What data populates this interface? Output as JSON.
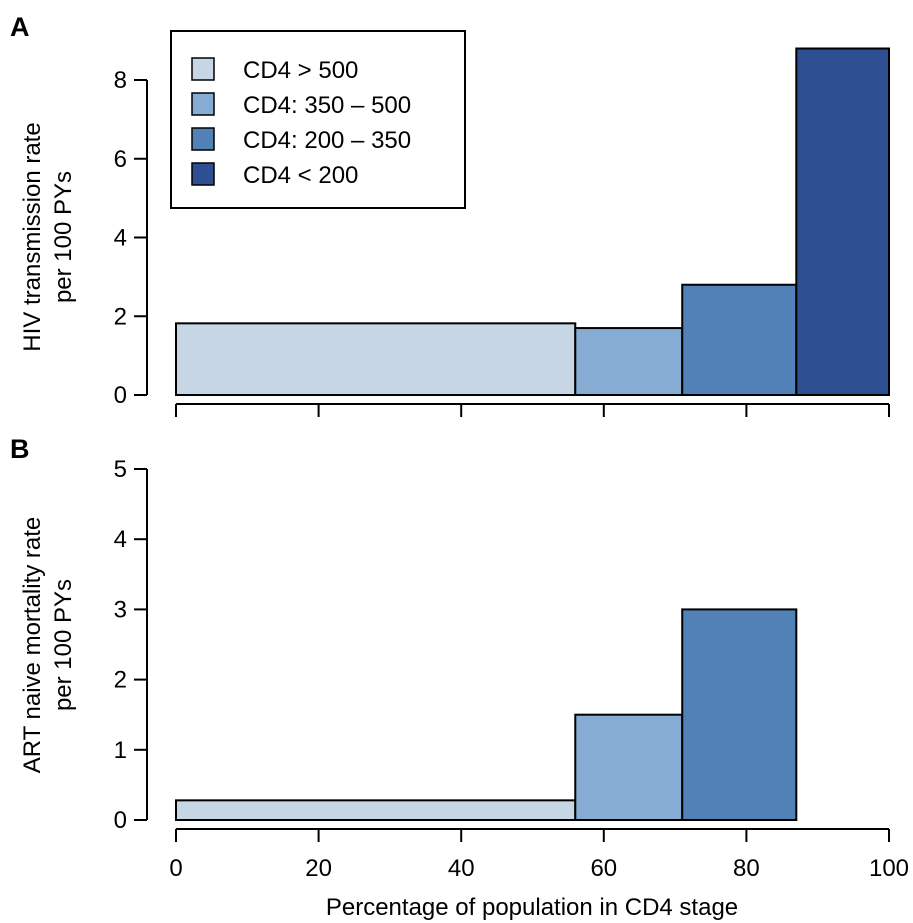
{
  "chart_data": [
    {
      "panel": "A",
      "type": "bar",
      "variable_width": true,
      "ylabel_line1": "HIV transmission rate",
      "ylabel_line2": "per 100 PYs",
      "ylim": [
        0,
        8
      ],
      "yticks": [
        0,
        2,
        4,
        6,
        8
      ],
      "xlim": [
        0,
        100
      ],
      "xticks": [
        0,
        20,
        40,
        60,
        80,
        100
      ],
      "bars": [
        {
          "label": "CD4 > 500",
          "x_start": 0,
          "x_end": 56,
          "value": 1.82
        },
        {
          "label": "CD4: 350 – 500",
          "x_start": 56,
          "x_end": 71,
          "value": 1.7
        },
        {
          "label": "CD4: 200 – 350",
          "x_start": 71,
          "x_end": 87,
          "value": 2.8
        },
        {
          "label": "CD4 < 200",
          "x_start": 87,
          "x_end": 100,
          "value": 8.8
        }
      ],
      "legend": {
        "placement": "top-left",
        "entries": [
          "CD4 > 500",
          "CD4: 350 – 500",
          "CD4: 200 – 350",
          "CD4 < 200"
        ]
      },
      "grid": false
    },
    {
      "panel": "B",
      "type": "bar",
      "variable_width": true,
      "ylabel_line1": "ART naive mortality rate",
      "ylabel_line2": "per 100 PYs",
      "ylim": [
        0,
        5
      ],
      "yticks": [
        0,
        1,
        2,
        3,
        4,
        5
      ],
      "xlim": [
        0,
        100
      ],
      "xticks": [
        0,
        20,
        40,
        60,
        80,
        100
      ],
      "xlabel": "Percentage of population in CD4 stage",
      "bars": [
        {
          "label": "CD4 > 500",
          "x_start": 0,
          "x_end": 56,
          "value": 0.28
        },
        {
          "label": "CD4: 350 – 500",
          "x_start": 56,
          "x_end": 71,
          "value": 1.5
        },
        {
          "label": "CD4: 200 – 350",
          "x_start": 71,
          "x_end": 87,
          "value": 3.0
        }
      ],
      "grid": false
    }
  ],
  "colors": {
    "CD4 > 500": "#c6d6e4",
    "CD4: 350 – 500": "#86acd4",
    "CD4: 200 – 350": "#5181b7",
    "CD4 < 200": "#2f4f93",
    "outline": "#000000"
  }
}
